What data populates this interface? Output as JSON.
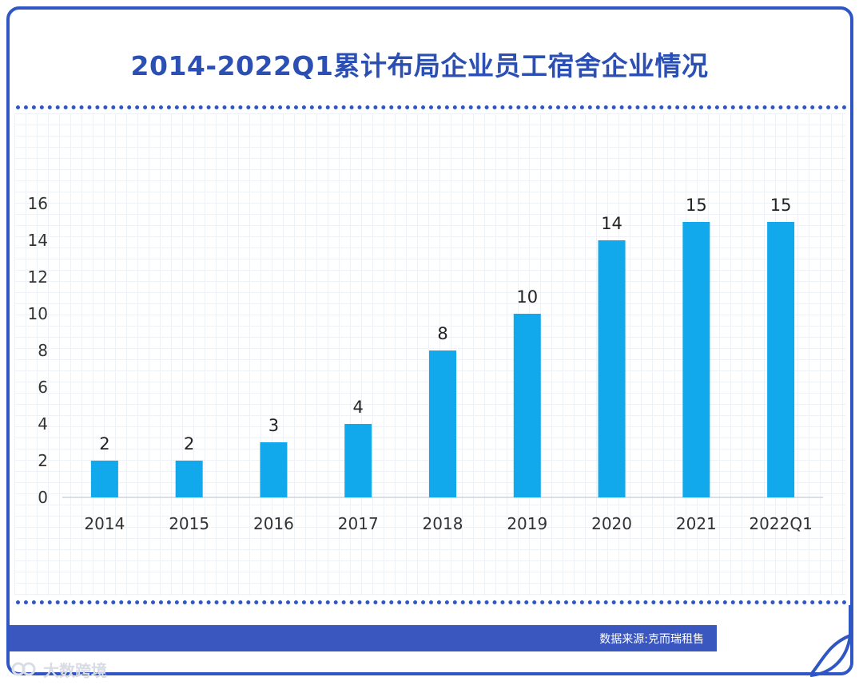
{
  "chart_data": {
    "type": "bar",
    "title": "2014-2022Q1累计布局企业员工宿舍企业情况",
    "categories": [
      "2014",
      "2015",
      "2016",
      "2017",
      "2018",
      "2019",
      "2020",
      "2021",
      "2022Q1"
    ],
    "values": [
      2,
      2,
      3,
      4,
      8,
      10,
      14,
      15,
      15
    ],
    "xlabel": "",
    "ylabel": "",
    "ylim": [
      0,
      16
    ],
    "yticks": [
      "0",
      "2",
      "4",
      "6",
      "8",
      "10",
      "12",
      "14",
      "16"
    ],
    "grid": true,
    "legend": "none",
    "bar_color": "#12a8ec"
  },
  "footer": {
    "source": "数据来源:克而瑞租售",
    "watermark": "大数跨境"
  },
  "colors": {
    "frame": "#2f56c4",
    "title": "#2b4fb3",
    "source_bar": "#3a57c0"
  }
}
